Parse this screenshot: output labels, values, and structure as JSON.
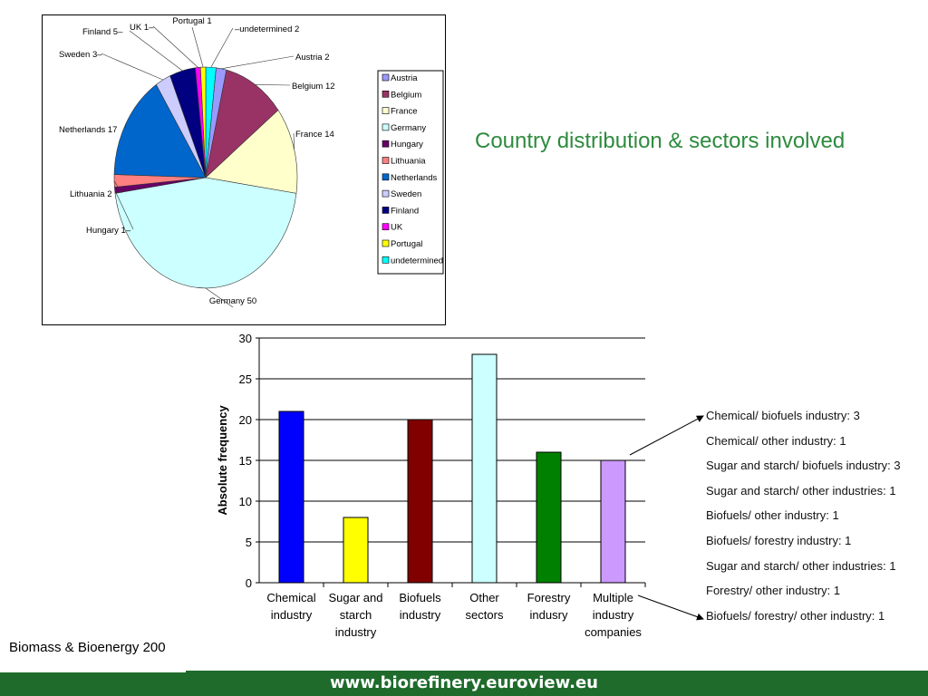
{
  "slide": {
    "title": "Country distribution & sectors involved",
    "footer_left": "Biomass & Bioenergy 200",
    "footer_url": "www.biorefinery.euroview.eu",
    "colors": {
      "title": "#2e8b3e",
      "footer_bar": "#1f6b2c"
    }
  },
  "chart_data": [
    {
      "type": "pie",
      "title": "",
      "legend_position": "right",
      "categories": [
        "Austria",
        "Belgium",
        "France",
        "Germany",
        "Hungary",
        "Lithuania",
        "Netherlands",
        "Sweden",
        "Finland",
        "UK",
        "Portugal",
        "undetermined"
      ],
      "values": [
        2,
        12,
        14,
        50,
        1,
        2,
        17,
        3,
        5,
        1,
        1,
        2
      ],
      "colors": [
        "#9999ff",
        "#993366",
        "#ffffcc",
        "#ccffff",
        "#660066",
        "#ff8080",
        "#0066cc",
        "#ccccff",
        "#000080",
        "#ff00ff",
        "#ffff00",
        "#00ffff"
      ],
      "data_labels": [
        "Austria 2",
        "Belgium 12",
        "France 14",
        "Germany 50",
        "Hungary 1–",
        "Lithuania 2",
        "Netherlands 17",
        "Sweden 3–",
        "Finland 5–",
        "UK 1–",
        "Portugal 1",
        "–undetermined 2"
      ]
    },
    {
      "type": "bar",
      "title": "",
      "xlabel": "",
      "ylabel": "Absolute frequency",
      "ylim": [
        0,
        30
      ],
      "yticks": [
        0,
        5,
        10,
        15,
        20,
        25,
        30
      ],
      "grid": true,
      "categories": [
        [
          "Chemical",
          "industry"
        ],
        [
          "Sugar and",
          "starch",
          "industry"
        ],
        [
          "Biofuels",
          "industry"
        ],
        [
          "Other",
          "sectors"
        ],
        [
          "Forestry",
          "indusry"
        ],
        [
          "Multiple",
          "industry",
          "companies"
        ]
      ],
      "values": [
        21,
        8,
        20,
        28,
        16,
        15
      ],
      "colors": [
        "#0000ff",
        "#ffff00",
        "#800000",
        "#ccffff",
        "#008000",
        "#cc99ff"
      ],
      "annotations": [
        "Chemical/ biofuels industry: 3",
        "Chemical/ other industry: 1",
        "Sugar and starch/ biofuels industry: 3",
        "Sugar and starch/ other industries: 1",
        "Biofuels/ other industry: 1",
        "Biofuels/ forestry industry: 1",
        "Sugar and starch/ other industries: 1",
        "Forestry/ other industry: 1",
        "Biofuels/ forestry/ other industry: 1"
      ]
    }
  ]
}
